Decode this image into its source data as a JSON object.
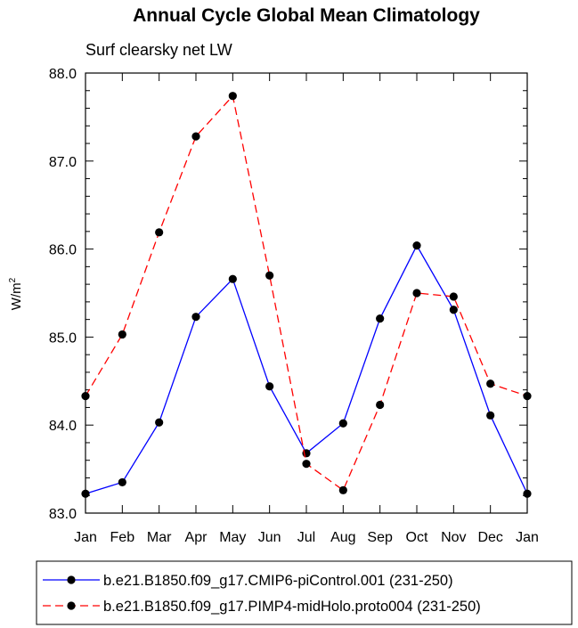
{
  "chart_data": {
    "type": "line",
    "title": "Annual Cycle Global Mean Climatology",
    "subtitle": "Surf clearsky net LW",
    "ylabel": "W/m",
    "ylabel_sup": "2",
    "xlabel": "",
    "categories": [
      "Jan",
      "Feb",
      "Mar",
      "Apr",
      "May",
      "Jun",
      "Jul",
      "Aug",
      "Sep",
      "Oct",
      "Nov",
      "Dec",
      "Jan"
    ],
    "ylim": [
      83.0,
      88.0
    ],
    "yticks": [
      83.0,
      84.0,
      85.0,
      86.0,
      87.0,
      88.0
    ],
    "ytick_labels": [
      "83.0",
      "84.0",
      "85.0",
      "86.0",
      "87.0",
      "88.0"
    ],
    "grid": false,
    "legend_position": "bottom",
    "series": [
      {
        "name": "b.e21.B1850.f09_g17.CMIP6-piControl.001 (231-250)",
        "color": "#0000ff",
        "line_style": "solid",
        "marker": "filled-circle",
        "values": [
          83.22,
          83.35,
          84.03,
          85.23,
          85.66,
          84.44,
          83.68,
          84.02,
          85.21,
          86.04,
          85.31,
          84.11,
          83.22
        ]
      },
      {
        "name": "b.e21.B1850.f09_g17.PIMP4-midHolo.proto004 (231-250)",
        "color": "#ff0000",
        "line_style": "dashed",
        "marker": "filled-circle",
        "values": [
          84.33,
          85.03,
          86.19,
          87.28,
          87.74,
          85.7,
          83.56,
          83.26,
          84.23,
          85.5,
          85.46,
          84.47,
          84.33
        ]
      }
    ]
  }
}
